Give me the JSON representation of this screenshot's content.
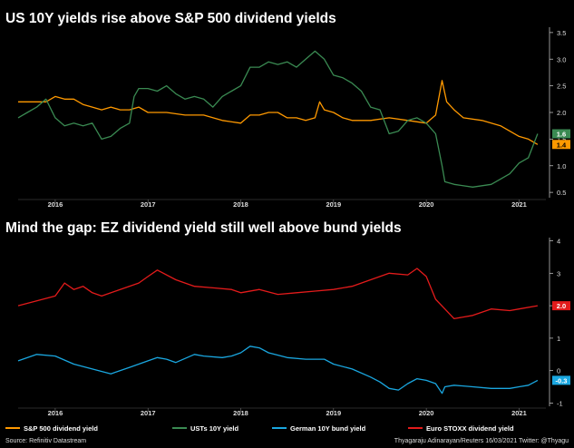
{
  "chart_data": [
    {
      "type": "line",
      "title": "US 10Y yields rise above S&P 500 dividend yields",
      "x_ticks": [
        "2016",
        "2017",
        "2018",
        "2019",
        "2020",
        "2021"
      ],
      "y_ticks": [
        "0.5",
        "1.0",
        "1.5",
        "2.0",
        "2.5",
        "3.0",
        "3.5"
      ],
      "ylim": [
        0.4,
        3.6
      ],
      "x_range": [
        2015.6,
        2021.25
      ],
      "end_labels": [
        {
          "text": "1.6",
          "color": "#3a8a52",
          "value": 1.6
        },
        {
          "text": "1.4",
          "color": "#ff9900",
          "value": 1.4
        }
      ],
      "series": [
        {
          "name": "S&P 500 dividend yield",
          "color": "#ff9900",
          "x": [
            2015.6,
            2015.75,
            2015.9,
            2016.0,
            2016.1,
            2016.2,
            2016.3,
            2016.4,
            2016.5,
            2016.6,
            2016.7,
            2016.8,
            2016.9,
            2017.0,
            2017.2,
            2017.4,
            2017.6,
            2017.8,
            2018.0,
            2018.1,
            2018.2,
            2018.3,
            2018.4,
            2018.5,
            2018.6,
            2018.7,
            2018.8,
            2018.85,
            2018.9,
            2019.0,
            2019.1,
            2019.2,
            2019.4,
            2019.6,
            2019.8,
            2020.0,
            2020.1,
            2020.17,
            2020.22,
            2020.3,
            2020.4,
            2020.6,
            2020.8,
            2021.0,
            2021.1,
            2021.2
          ],
          "values": [
            2.2,
            2.2,
            2.2,
            2.3,
            2.25,
            2.25,
            2.15,
            2.1,
            2.05,
            2.1,
            2.05,
            2.05,
            2.1,
            2.0,
            2.0,
            1.95,
            1.95,
            1.85,
            1.8,
            1.95,
            1.95,
            2.0,
            2.0,
            1.9,
            1.9,
            1.85,
            1.9,
            2.2,
            2.05,
            2.0,
            1.9,
            1.85,
            1.85,
            1.9,
            1.85,
            1.8,
            1.95,
            2.6,
            2.2,
            2.05,
            1.9,
            1.85,
            1.75,
            1.55,
            1.5,
            1.4
          ]
        },
        {
          "name": "USTs 10Y yield",
          "color": "#3a8a52",
          "x": [
            2015.6,
            2015.7,
            2015.8,
            2015.9,
            2016.0,
            2016.1,
            2016.2,
            2016.3,
            2016.4,
            2016.5,
            2016.6,
            2016.7,
            2016.8,
            2016.85,
            2016.9,
            2017.0,
            2017.1,
            2017.2,
            2017.3,
            2017.4,
            2017.5,
            2017.6,
            2017.7,
            2017.8,
            2017.9,
            2018.0,
            2018.1,
            2018.2,
            2018.3,
            2018.4,
            2018.5,
            2018.6,
            2018.7,
            2018.8,
            2018.9,
            2019.0,
            2019.1,
            2019.2,
            2019.3,
            2019.4,
            2019.5,
            2019.6,
            2019.7,
            2019.8,
            2019.9,
            2020.0,
            2020.1,
            2020.17,
            2020.2,
            2020.3,
            2020.5,
            2020.7,
            2020.8,
            2020.9,
            2021.0,
            2021.1,
            2021.2
          ],
          "values": [
            1.9,
            2.0,
            2.1,
            2.25,
            1.9,
            1.75,
            1.8,
            1.75,
            1.8,
            1.5,
            1.55,
            1.7,
            1.8,
            2.3,
            2.45,
            2.45,
            2.4,
            2.5,
            2.35,
            2.25,
            2.3,
            2.25,
            2.1,
            2.3,
            2.4,
            2.5,
            2.85,
            2.85,
            2.95,
            2.9,
            2.95,
            2.85,
            3.0,
            3.15,
            3.0,
            2.7,
            2.65,
            2.55,
            2.4,
            2.1,
            2.05,
            1.6,
            1.65,
            1.85,
            1.9,
            1.8,
            1.6,
            1.0,
            0.7,
            0.65,
            0.6,
            0.65,
            0.75,
            0.85,
            1.05,
            1.15,
            1.6
          ]
        }
      ]
    },
    {
      "type": "line",
      "title": "Mind the gap: EZ dividend yield still well above bund yields",
      "x_ticks": [
        "2016",
        "2017",
        "2018",
        "2019",
        "2020",
        "2021"
      ],
      "y_ticks": [
        "-1",
        "0",
        "1",
        "2",
        "3",
        "4"
      ],
      "ylim": [
        -1.1,
        4.1
      ],
      "x_range": [
        2015.6,
        2021.25
      ],
      "end_labels": [
        {
          "text": "2.0",
          "color": "#e31b1b",
          "value": 2.0
        },
        {
          "text": "-0.3",
          "color": "#1aa7e0",
          "value": -0.3
        }
      ],
      "series": [
        {
          "name": "German 10Y bund yield",
          "color": "#1aa7e0",
          "x": [
            2015.6,
            2015.8,
            2016.0,
            2016.2,
            2016.4,
            2016.6,
            2016.8,
            2017.0,
            2017.1,
            2017.2,
            2017.3,
            2017.5,
            2017.6,
            2017.8,
            2017.9,
            2018.0,
            2018.1,
            2018.2,
            2018.3,
            2018.5,
            2018.7,
            2018.9,
            2019.0,
            2019.2,
            2019.4,
            2019.5,
            2019.6,
            2019.7,
            2019.8,
            2019.9,
            2020.0,
            2020.1,
            2020.17,
            2020.2,
            2020.3,
            2020.5,
            2020.7,
            2020.9,
            2021.0,
            2021.1,
            2021.2
          ],
          "values": [
            0.3,
            0.5,
            0.45,
            0.2,
            0.05,
            -0.1,
            0.1,
            0.3,
            0.4,
            0.35,
            0.25,
            0.5,
            0.45,
            0.4,
            0.45,
            0.55,
            0.75,
            0.7,
            0.55,
            0.4,
            0.35,
            0.35,
            0.2,
            0.05,
            -0.2,
            -0.35,
            -0.55,
            -0.6,
            -0.4,
            -0.25,
            -0.3,
            -0.4,
            -0.7,
            -0.5,
            -0.45,
            -0.5,
            -0.55,
            -0.55,
            -0.5,
            -0.45,
            -0.3
          ]
        },
        {
          "name": "Euro STOXX dividend yield",
          "color": "#e31b1b",
          "x": [
            2015.6,
            2015.8,
            2016.0,
            2016.1,
            2016.2,
            2016.3,
            2016.4,
            2016.5,
            2016.7,
            2016.9,
            2017.0,
            2017.1,
            2017.3,
            2017.5,
            2017.7,
            2017.9,
            2018.0,
            2018.2,
            2018.4,
            2018.6,
            2018.8,
            2019.0,
            2019.2,
            2019.4,
            2019.6,
            2019.8,
            2019.9,
            2020.0,
            2020.1,
            2020.2,
            2020.3,
            2020.5,
            2020.7,
            2020.9,
            2021.0,
            2021.2
          ],
          "values": [
            2.0,
            2.15,
            2.3,
            2.7,
            2.5,
            2.6,
            2.4,
            2.3,
            2.5,
            2.7,
            2.9,
            3.1,
            2.8,
            2.6,
            2.55,
            2.5,
            2.4,
            2.5,
            2.35,
            2.4,
            2.45,
            2.5,
            2.6,
            2.8,
            3.0,
            2.95,
            3.15,
            2.9,
            2.2,
            1.9,
            1.6,
            1.7,
            1.9,
            1.85,
            1.9,
            2.0
          ]
        }
      ]
    }
  ],
  "legend": [
    {
      "label": "S&P 500 dividend yield",
      "color": "#ff9900"
    },
    {
      "label": "USTs 10Y yield",
      "color": "#3a8a52"
    },
    {
      "label": "German 10Y bund yield",
      "color": "#1aa7e0"
    },
    {
      "label": "Euro STOXX dividend yield",
      "color": "#e31b1b"
    }
  ],
  "footer": {
    "source": "Source: Refinitiv Datastream",
    "credit": "Thyagaraju Adinarayan/Reuters 16/03/2021 Twitter: @Thyagu"
  }
}
